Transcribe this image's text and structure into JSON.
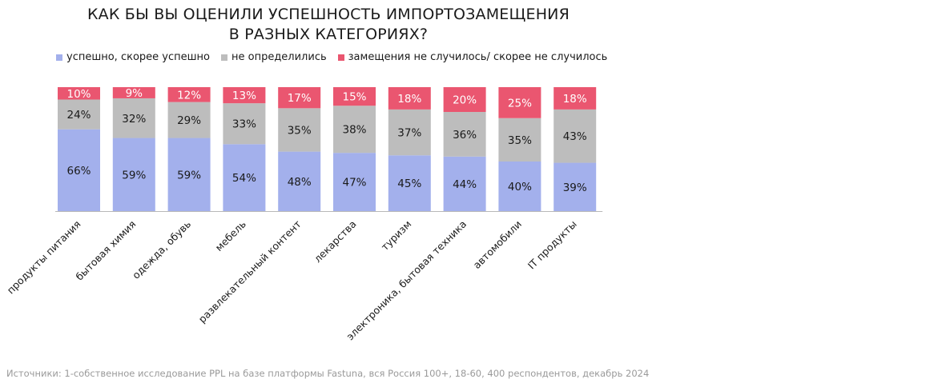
{
  "chart_data": {
    "type": "bar",
    "stacked": true,
    "normalized": true,
    "title_lines": [
      "КАК БЫ ВЫ ОЦЕНИЛИ УСПЕШНОСТЬ ИМПОРТОЗАМЕЩЕНИЯ",
      "В РАЗНЫХ КАТЕГОРИЯХ?"
    ],
    "categories": [
      "продукты питания",
      "бытовая химия",
      "одежда, обувь",
      "мебель",
      "развлекательный контент",
      "лекарства",
      "туризм",
      "электроника, бытовая техника",
      "автомобили",
      "IT продукты"
    ],
    "series": [
      {
        "name": "успешно, скорее успешно",
        "color": "#a3b0ec",
        "values": [
          66,
          59,
          59,
          54,
          48,
          47,
          45,
          44,
          40,
          39
        ]
      },
      {
        "name": "не определились",
        "color": "#bdbdbd",
        "values": [
          24,
          32,
          29,
          33,
          35,
          38,
          37,
          36,
          35,
          43
        ]
      },
      {
        "name": "замещения не случилось/ скорее не случилось",
        "color": "#ea5670",
        "values": [
          10,
          9,
          12,
          13,
          17,
          15,
          18,
          20,
          25,
          18
        ]
      }
    ],
    "value_suffix": "%",
    "legend_position": "top",
    "ylim": [
      0,
      100
    ],
    "grid": false
  },
  "source_note": "Источники: 1-собственное исследование PPL на базе платформы Fastuna, вся Россия 100+, 18-60, 400 респондентов, декабрь 2024"
}
